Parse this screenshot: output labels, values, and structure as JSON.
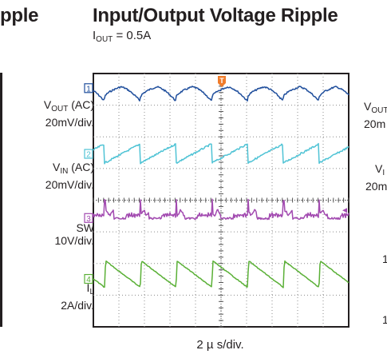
{
  "left_panel": {
    "title_fragment": "pple"
  },
  "header": {
    "title": "Input/Output Voltage Ripple",
    "condition": {
      "symbol": "I",
      "sub": "OUT",
      "rest": " = 0.5A"
    }
  },
  "right_panel": {
    "labels": [
      {
        "main": "V",
        "sub": "OUT",
        "line2": "20m"
      },
      {
        "main": "V",
        "sub": "I",
        "line2": "20m"
      },
      {
        "line2": "1"
      },
      {
        "line2": "1"
      }
    ]
  },
  "chart_data": {
    "type": "line",
    "title": "Input/Output Voltage Ripple",
    "subtitle": "IOUT = 0.5A",
    "xlabel": "2 µ s/div.",
    "x_divisions": 10,
    "y_divisions": 8,
    "grid": true,
    "trigger_marker": "T",
    "colors": {
      "vout": "#1f4e9c",
      "vin": "#4fc3d5",
      "sw": "#a24ab0",
      "il": "#5ab036",
      "trigger": "#f07c2b",
      "grid": "#8c8c8c"
    },
    "channels": [
      {
        "id": "1",
        "name_main": "V",
        "name_sub": "OUT",
        "name_rest": " (AC)",
        "scale": "20mV/div.",
        "color_key": "vout",
        "waveform": "ripple-sawtooth-dip",
        "period_div": 1.4
      },
      {
        "id": "2",
        "name_main": "V",
        "name_sub": "IN",
        "name_rest": " (AC)",
        "scale": "20mV/div.",
        "color_key": "vin",
        "waveform": "ramp-up-drop",
        "period_div": 1.4
      },
      {
        "id": "3",
        "name_main": "SW",
        "name_sub": "",
        "name_rest": "",
        "scale": "10V/div.",
        "color_key": "sw",
        "waveform": "switching-pulses",
        "period_div": 1.4
      },
      {
        "id": "4",
        "name_main": "I",
        "name_sub": "L",
        "name_rest": "",
        "scale": "2A/div.",
        "color_key": "il",
        "waveform": "inductor-current-sawtooth",
        "period_div": 1.4
      }
    ]
  }
}
